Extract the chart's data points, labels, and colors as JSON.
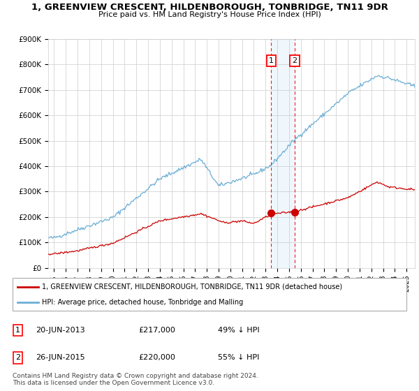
{
  "title": "1, GREENVIEW CRESCENT, HILDENBOROUGH, TONBRIDGE, TN11 9DR",
  "subtitle": "Price paid vs. HM Land Registry's House Price Index (HPI)",
  "ylabel_values": [
    "£0",
    "£100K",
    "£200K",
    "£300K",
    "£400K",
    "£500K",
    "£600K",
    "£700K",
    "£800K",
    "£900K"
  ],
  "ylim": [
    0,
    900000
  ],
  "xlim_start": 1994.5,
  "xlim_end": 2025.7,
  "hpi_color": "#6baed6",
  "property_color": "#cc0000",
  "sale1_date": "20-JUN-2013",
  "sale1_price": 217000,
  "sale1_pct": "49% ↓ HPI",
  "sale1_year": 2013.47,
  "sale2_date": "26-JUN-2015",
  "sale2_price": 220000,
  "sale2_pct": "55% ↓ HPI",
  "sale2_year": 2015.48,
  "legend_line1": "1, GREENVIEW CRESCENT, HILDENBOROUGH, TONBRIDGE, TN11 9DR (detached house)",
  "legend_line2": "HPI: Average price, detached house, Tonbridge and Malling",
  "footnote": "Contains HM Land Registry data © Crown copyright and database right 2024.\nThis data is licensed under the Open Government Licence v3.0.",
  "background_color": "#ffffff",
  "grid_color": "#cccccc"
}
